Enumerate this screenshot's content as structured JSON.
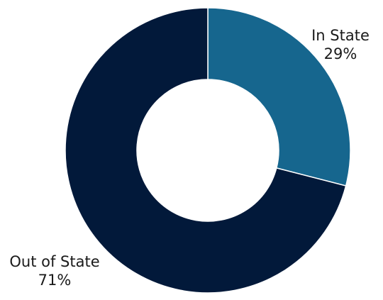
{
  "chart_data": {
    "type": "pie",
    "variant": "donut",
    "title": "",
    "slices": [
      {
        "name": "In State",
        "value": 29,
        "label": "29%",
        "color": "#16668E"
      },
      {
        "name": "Out of State",
        "value": 71,
        "label": "71%",
        "color": "#02193A"
      }
    ],
    "legend": "none",
    "start_angle": "12 o'clock, clockwise"
  }
}
